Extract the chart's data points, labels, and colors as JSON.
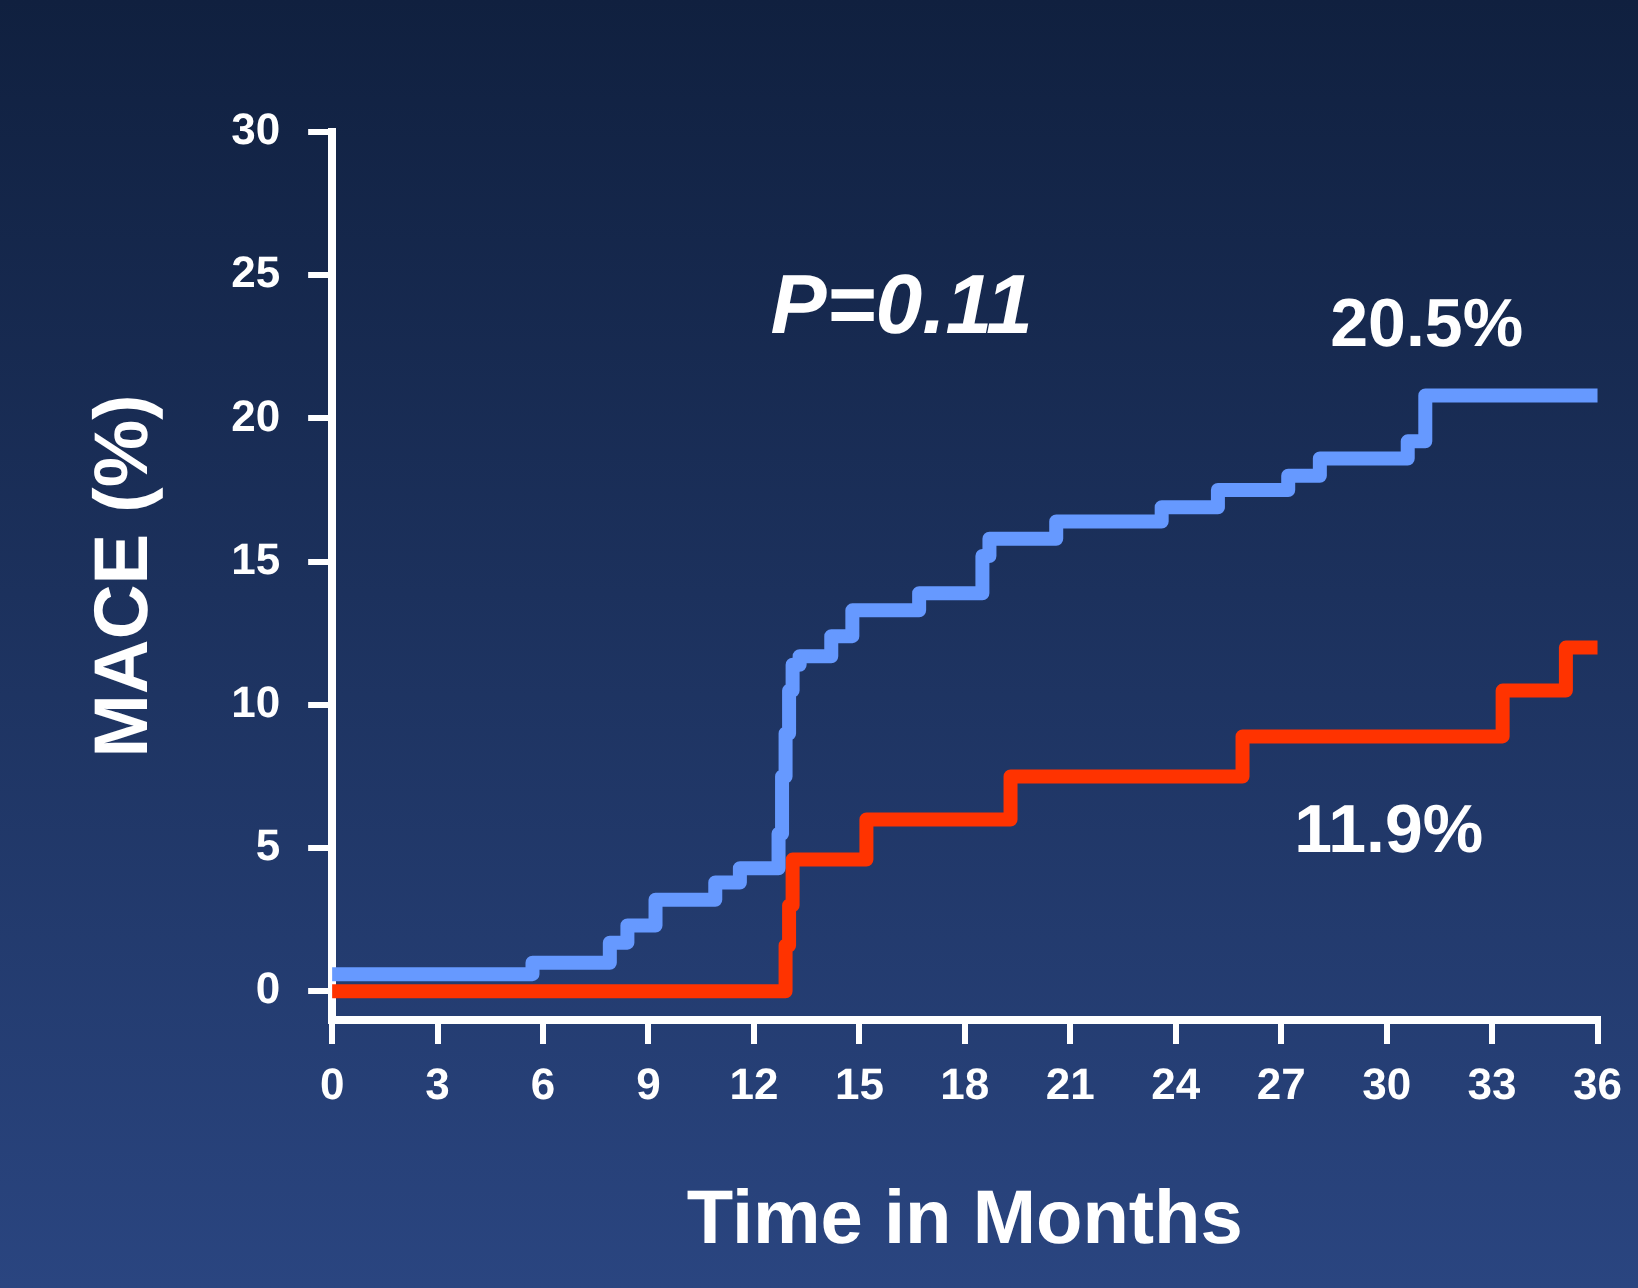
{
  "chart_data": {
    "type": "step",
    "xlabel": "Time in Months",
    "ylabel": "MACE (%)",
    "xlim": [
      0,
      36
    ],
    "xticks": [
      0,
      3,
      6,
      9,
      12,
      15,
      18,
      21,
      24,
      27,
      30,
      33,
      36
    ],
    "ylim": [
      -1,
      30
    ],
    "yticks": [
      0,
      5,
      10,
      15,
      20,
      25,
      30
    ],
    "grid": false,
    "legend": false,
    "marker": "none",
    "line_style": "solid",
    "series": [
      {
        "color": "#6699ff",
        "x": [
          0,
          5.7,
          7.9,
          8.4,
          9.2,
          10.9,
          11.6,
          12.7,
          12.8,
          12.9,
          13.0,
          13.1,
          13.3,
          14.2,
          14.8,
          16.7,
          18.5,
          18.7,
          20.6,
          23.6,
          25.2,
          27.2,
          28.1,
          30.6,
          31.1,
          36
        ],
        "values": [
          0.6,
          1.0,
          1.7,
          2.3,
          3.2,
          3.8,
          4.3,
          5.5,
          7.5,
          9.0,
          10.5,
          11.4,
          11.7,
          12.4,
          13.3,
          13.9,
          15.2,
          15.8,
          16.4,
          16.9,
          17.5,
          18.0,
          18.6,
          19.2,
          20.8,
          20.8
        ]
      },
      {
        "color": "#ff3300",
        "x": [
          0,
          12.9,
          13.0,
          13.1,
          15.2,
          19.3,
          25.9,
          33.3,
          35.1,
          36
        ],
        "values": [
          0,
          1.6,
          3.0,
          4.6,
          6.0,
          7.5,
          8.9,
          10.5,
          12.0,
          12.0
        ]
      }
    ],
    "annotations": [
      "P=0.11",
      "20.5%",
      "11.9%"
    ]
  }
}
